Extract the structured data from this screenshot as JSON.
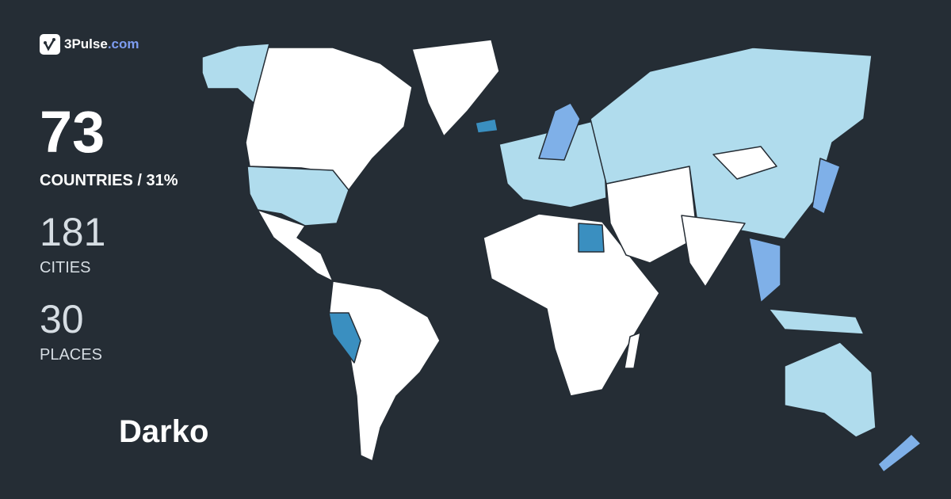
{
  "brand": {
    "name": "3Pulse",
    "domain": ".com",
    "icon": "check-pulse-icon"
  },
  "stats": {
    "countries_count": "73",
    "countries_label": "COUNTRIES / 31%",
    "countries_percent": 31,
    "cities_count": "181",
    "cities_label": "CITIES",
    "places_count": "30",
    "places_label": "PLACES"
  },
  "user": {
    "name": "Darko"
  },
  "colors": {
    "background": "#252d35",
    "not_visited": "#ffffff",
    "visited_light": "#b0dced",
    "visited_medium": "#7fb0e8",
    "visited_strong": "#3a8fc0"
  }
}
